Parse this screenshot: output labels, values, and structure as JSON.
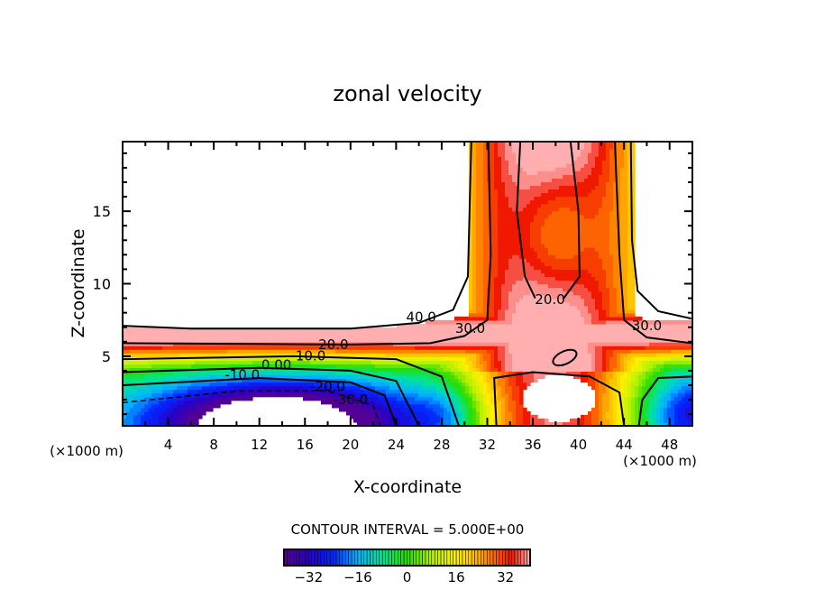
{
  "chart_data": {
    "type": "heatmap",
    "subtype": "filled-contour",
    "title": "zonal velocity",
    "xlabel": "X-coordinate",
    "ylabel": "Z-coordinate",
    "x_unit_left": "(×1000 m)",
    "x_unit_right": "(×1000 m)",
    "xlim": [
      0,
      50
    ],
    "ylim": [
      0.2,
      19.8
    ],
    "xticks": [
      4,
      8,
      12,
      16,
      20,
      24,
      28,
      32,
      36,
      40,
      44,
      48
    ],
    "xtick_labels": [
      "4",
      "8",
      "12",
      "16",
      "20",
      "24",
      "28",
      "32",
      "36",
      "40",
      "44",
      "48"
    ],
    "yticks": [
      5,
      10,
      15
    ],
    "ytick_labels": [
      "5",
      "10",
      "15"
    ],
    "contour_interval_text": "CONTOUR INTERVAL = 5.000E+00",
    "contour_interval": 5,
    "value_range": [
      -40,
      40
    ],
    "contour_labels": [
      {
        "text": "40.0",
        "x": 26.2,
        "z": 7.4
      },
      {
        "text": "30.0",
        "x": 30.5,
        "z": 6.6
      },
      {
        "text": "20.0",
        "x": 37.5,
        "z": 8.6
      },
      {
        "text": "30.0",
        "x": 46.0,
        "z": 6.8
      },
      {
        "text": "20.0",
        "x": 18.5,
        "z": 5.5
      },
      {
        "text": "10.0",
        "x": 16.5,
        "z": 4.7
      },
      {
        "text": "0.00",
        "x": 13.5,
        "z": 4.1
      },
      {
        "text": "-10.0",
        "x": 10.5,
        "z": 3.4
      },
      {
        "text": "-20.0",
        "x": 18.0,
        "z": 2.6
      },
      {
        "text": "-30.0",
        "x": 20.0,
        "z": 1.7
      }
    ],
    "colorbar": {
      "tick_labels": [
        "−32",
        "−16",
        "0",
        "16",
        "32"
      ],
      "ticks": [
        -32,
        -16,
        0,
        16,
        32
      ],
      "range": [
        -40,
        40
      ]
    }
  }
}
